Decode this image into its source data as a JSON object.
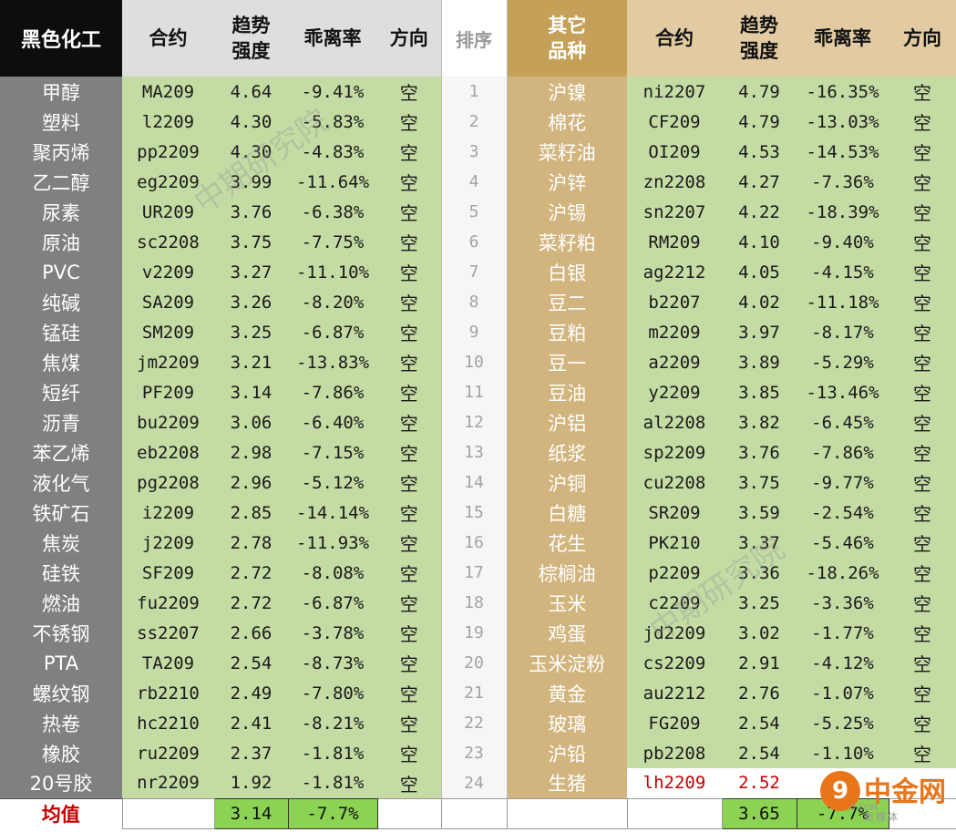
{
  "headers": {
    "left_category": "黑色化工",
    "contract": "合约",
    "trend_line1": "趋势",
    "trend_line2": "强度",
    "deviation": "乖离率",
    "direction": "方向",
    "sort": "排序",
    "right_category_line1": "其它",
    "right_category_line2": "品种"
  },
  "rows": [
    {
      "l_name": "甲醇",
      "l_code": "MA209",
      "l_trend": "4.64",
      "l_dev": "-9.41%",
      "l_dir": "空",
      "rank": "1",
      "r_name": "沪镍",
      "r_code": "ni2207",
      "r_trend": "4.79",
      "r_dev": "-16.35%",
      "r_dir": "空"
    },
    {
      "l_name": "塑料",
      "l_code": "l2209",
      "l_trend": "4.30",
      "l_dev": "-5.83%",
      "l_dir": "空",
      "rank": "2",
      "r_name": "棉花",
      "r_code": "CF209",
      "r_trend": "4.79",
      "r_dev": "-13.03%",
      "r_dir": "空"
    },
    {
      "l_name": "聚丙烯",
      "l_code": "pp2209",
      "l_trend": "4.30",
      "l_dev": "-4.83%",
      "l_dir": "空",
      "rank": "3",
      "r_name": "菜籽油",
      "r_code": "OI209",
      "r_trend": "4.53",
      "r_dev": "-14.53%",
      "r_dir": "空"
    },
    {
      "l_name": "乙二醇",
      "l_code": "eg2209",
      "l_trend": "3.99",
      "l_dev": "-11.64%",
      "l_dir": "空",
      "rank": "4",
      "r_name": "沪锌",
      "r_code": "zn2208",
      "r_trend": "4.27",
      "r_dev": "-7.36%",
      "r_dir": "空"
    },
    {
      "l_name": "尿素",
      "l_code": "UR209",
      "l_trend": "3.76",
      "l_dev": "-6.38%",
      "l_dir": "空",
      "rank": "5",
      "r_name": "沪锡",
      "r_code": "sn2207",
      "r_trend": "4.22",
      "r_dev": "-18.39%",
      "r_dir": "空"
    },
    {
      "l_name": "原油",
      "l_code": "sc2208",
      "l_trend": "3.75",
      "l_dev": "-7.75%",
      "l_dir": "空",
      "rank": "6",
      "r_name": "菜籽粕",
      "r_code": "RM209",
      "r_trend": "4.10",
      "r_dev": "-9.40%",
      "r_dir": "空"
    },
    {
      "l_name": "PVC",
      "l_code": "v2209",
      "l_trend": "3.27",
      "l_dev": "-11.10%",
      "l_dir": "空",
      "rank": "7",
      "r_name": "白银",
      "r_code": "ag2212",
      "r_trend": "4.05",
      "r_dev": "-4.15%",
      "r_dir": "空"
    },
    {
      "l_name": "纯碱",
      "l_code": "SA209",
      "l_trend": "3.26",
      "l_dev": "-8.20%",
      "l_dir": "空",
      "rank": "8",
      "r_name": "豆二",
      "r_code": "b2207",
      "r_trend": "4.02",
      "r_dev": "-11.18%",
      "r_dir": "空"
    },
    {
      "l_name": "锰硅",
      "l_code": "SM209",
      "l_trend": "3.25",
      "l_dev": "-6.87%",
      "l_dir": "空",
      "rank": "9",
      "r_name": "豆粕",
      "r_code": "m2209",
      "r_trend": "3.97",
      "r_dev": "-8.17%",
      "r_dir": "空"
    },
    {
      "l_name": "焦煤",
      "l_code": "jm2209",
      "l_trend": "3.21",
      "l_dev": "-13.83%",
      "l_dir": "空",
      "rank": "10",
      "r_name": "豆一",
      "r_code": "a2209",
      "r_trend": "3.89",
      "r_dev": "-5.29%",
      "r_dir": "空"
    },
    {
      "l_name": "短纤",
      "l_code": "PF209",
      "l_trend": "3.14",
      "l_dev": "-7.86%",
      "l_dir": "空",
      "rank": "11",
      "r_name": "豆油",
      "r_code": "y2209",
      "r_trend": "3.85",
      "r_dev": "-13.46%",
      "r_dir": "空"
    },
    {
      "l_name": "沥青",
      "l_code": "bu2209",
      "l_trend": "3.06",
      "l_dev": "-6.40%",
      "l_dir": "空",
      "rank": "12",
      "r_name": "沪铝",
      "r_code": "al2208",
      "r_trend": "3.82",
      "r_dev": "-6.45%",
      "r_dir": "空"
    },
    {
      "l_name": "苯乙烯",
      "l_code": "eb2208",
      "l_trend": "2.98",
      "l_dev": "-7.15%",
      "l_dir": "空",
      "rank": "13",
      "r_name": "纸浆",
      "r_code": "sp2209",
      "r_trend": "3.76",
      "r_dev": "-7.86%",
      "r_dir": "空"
    },
    {
      "l_name": "液化气",
      "l_code": "pg2208",
      "l_trend": "2.96",
      "l_dev": "-5.12%",
      "l_dir": "空",
      "rank": "14",
      "r_name": "沪铜",
      "r_code": "cu2208",
      "r_trend": "3.75",
      "r_dev": "-9.77%",
      "r_dir": "空"
    },
    {
      "l_name": "铁矿石",
      "l_code": "i2209",
      "l_trend": "2.85",
      "l_dev": "-14.14%",
      "l_dir": "空",
      "rank": "15",
      "r_name": "白糖",
      "r_code": "SR209",
      "r_trend": "3.59",
      "r_dev": "-2.54%",
      "r_dir": "空"
    },
    {
      "l_name": "焦炭",
      "l_code": "j2209",
      "l_trend": "2.78",
      "l_dev": "-11.93%",
      "l_dir": "空",
      "rank": "16",
      "r_name": "花生",
      "r_code": "PK210",
      "r_trend": "3.37",
      "r_dev": "-5.46%",
      "r_dir": "空"
    },
    {
      "l_name": "硅铁",
      "l_code": "SF209",
      "l_trend": "2.72",
      "l_dev": "-8.08%",
      "l_dir": "空",
      "rank": "17",
      "r_name": "棕榈油",
      "r_code": "p2209",
      "r_trend": "3.36",
      "r_dev": "-18.26%",
      "r_dir": "空"
    },
    {
      "l_name": "燃油",
      "l_code": "fu2209",
      "l_trend": "2.72",
      "l_dev": "-6.87%",
      "l_dir": "空",
      "rank": "18",
      "r_name": "玉米",
      "r_code": "c2209",
      "r_trend": "3.25",
      "r_dev": "-3.36%",
      "r_dir": "空"
    },
    {
      "l_name": "不锈钢",
      "l_code": "ss2207",
      "l_trend": "2.66",
      "l_dev": "-3.78%",
      "l_dir": "空",
      "rank": "19",
      "r_name": "鸡蛋",
      "r_code": "jd2209",
      "r_trend": "3.02",
      "r_dev": "-1.77%",
      "r_dir": "空"
    },
    {
      "l_name": "PTA",
      "l_code": "TA209",
      "l_trend": "2.54",
      "l_dev": "-8.73%",
      "l_dir": "空",
      "rank": "20",
      "r_name": "玉米淀粉",
      "r_code": "cs2209",
      "r_trend": "2.91",
      "r_dev": "-4.12%",
      "r_dir": "空"
    },
    {
      "l_name": "螺纹钢",
      "l_code": "rb2210",
      "l_trend": "2.49",
      "l_dev": "-7.80%",
      "l_dir": "空",
      "rank": "21",
      "r_name": "黄金",
      "r_code": "au2212",
      "r_trend": "2.76",
      "r_dev": "-1.07%",
      "r_dir": "空"
    },
    {
      "l_name": "热卷",
      "l_code": "hc2210",
      "l_trend": "2.41",
      "l_dev": "-8.21%",
      "l_dir": "空",
      "rank": "22",
      "r_name": "玻璃",
      "r_code": "FG209",
      "r_trend": "2.54",
      "r_dev": "-5.25%",
      "r_dir": "空"
    },
    {
      "l_name": "橡胶",
      "l_code": "ru2209",
      "l_trend": "2.37",
      "l_dev": "-1.81%",
      "l_dir": "空",
      "rank": "23",
      "r_name": "沪铅",
      "r_code": "pb2208",
      "r_trend": "2.54",
      "r_dev": "-1.10%",
      "r_dir": "空"
    },
    {
      "l_name": "20号胶",
      "l_code": "nr2209",
      "l_trend": "1.92",
      "l_dev": "-1.81%",
      "l_dir": "空",
      "rank": "24",
      "r_name": "生猪",
      "r_code": "lh2209",
      "r_trend": "2.52",
      "r_dev": "",
      "r_dir": "",
      "r_highlight": true
    }
  ],
  "average": {
    "label": "均值",
    "left_trend": "3.14",
    "left_dev": "-7.7%",
    "right_trend": "3.65",
    "right_dev": "-7.7%"
  },
  "watermarks": [
    "中期研究院",
    "中期研究院"
  ],
  "logo": {
    "glyph": "9",
    "name": "中金网",
    "url": "D.COM",
    "sub": "新媒体"
  },
  "colors": {
    "left_header_bg": "#0d0d0d",
    "name_col_bg": "#808080",
    "data_green": "#c4dca4",
    "gold_header": "#c4a058",
    "gold_col": "#d2b57e",
    "avg_green": "#8cd354",
    "highlight_red": "#c40000"
  }
}
